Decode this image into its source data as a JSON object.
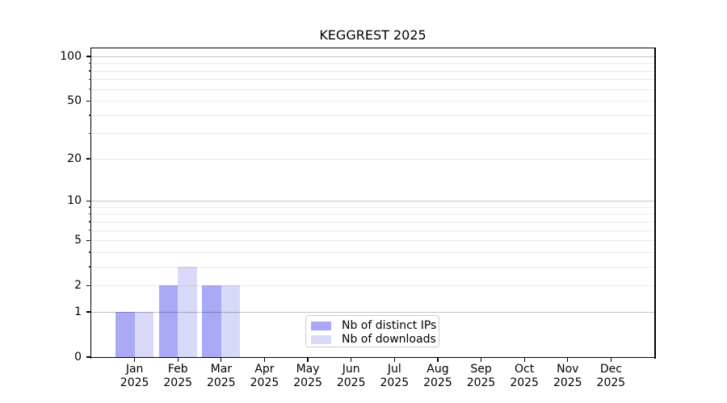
{
  "figure": {
    "title": "KEGGREST 2025"
  },
  "chart_data": {
    "type": "bar",
    "title": "KEGGREST 2025",
    "x_categories": [
      {
        "month": "Jan",
        "year": "2025"
      },
      {
        "month": "Feb",
        "year": "2025"
      },
      {
        "month": "Mar",
        "year": "2025"
      },
      {
        "month": "Apr",
        "year": "2025"
      },
      {
        "month": "May",
        "year": "2025"
      },
      {
        "month": "Jun",
        "year": "2025"
      },
      {
        "month": "Jul",
        "year": "2025"
      },
      {
        "month": "Aug",
        "year": "2025"
      },
      {
        "month": "Sep",
        "year": "2025"
      },
      {
        "month": "Oct",
        "year": "2025"
      },
      {
        "month": "Nov",
        "year": "2025"
      },
      {
        "month": "Dec",
        "year": "2025"
      }
    ],
    "series": [
      {
        "name": "Nb of distinct IPs",
        "color": "#a9a9f6",
        "values": [
          1,
          2,
          2,
          0,
          0,
          0,
          0,
          0,
          0,
          0,
          0,
          0
        ]
      },
      {
        "name": "Nb of downloads",
        "color": "#d8d8f9",
        "values": [
          1,
          3,
          2,
          0,
          0,
          0,
          0,
          0,
          0,
          0,
          0,
          0
        ]
      }
    ],
    "y_axis": {
      "scale": "log1p",
      "ylim": [
        0,
        113.3
      ],
      "labeled_ticks": [
        0,
        1,
        2,
        5,
        10,
        20,
        50,
        100
      ],
      "major_gridlines": [
        1,
        10,
        100
      ],
      "minor_gridlines": [
        2,
        3,
        4,
        5,
        6,
        7,
        8,
        9,
        20,
        30,
        40,
        50,
        60,
        70,
        80,
        90
      ]
    },
    "legend": {
      "position": "lower center inside",
      "entries": [
        "Nb of distinct IPs",
        "Nb of downloads"
      ]
    },
    "grid": true
  },
  "colors": {
    "distinct_ips": "#a9a9f6",
    "downloads": "#d8d8f9",
    "major_grid": "#c2c2c2",
    "minor_grid": "#e9e9e9",
    "spine": "#000000",
    "legend_border": "#cccccc",
    "background": "#ffffff"
  }
}
